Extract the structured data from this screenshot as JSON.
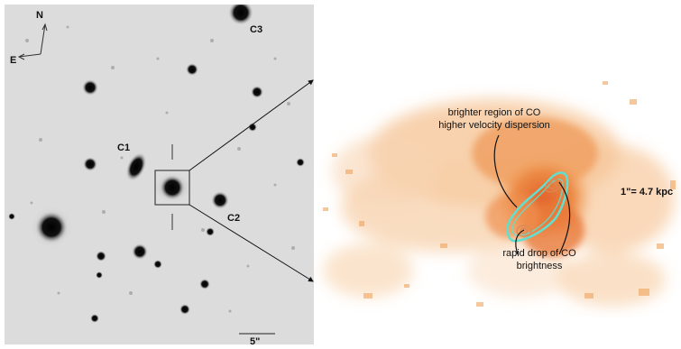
{
  "left_panel": {
    "compass": {
      "north": "N",
      "east": "E"
    },
    "labels": {
      "c1": "C1",
      "c2": "C2",
      "c3": "C3"
    },
    "scale_bar": "5\""
  },
  "right_panel": {
    "annotation_top_line1": "brighter region of CO",
    "annotation_top_line2": "higher velocity dispersion",
    "annotation_bottom_line1": "rapid drop of CO",
    "annotation_bottom_line2": "brightness",
    "scale_label": "1\"= 4.7 kpc"
  },
  "colors": {
    "background_sky": "#dcdcdc",
    "co_emission": "#e8843a",
    "contours": "#5fe0d0"
  }
}
